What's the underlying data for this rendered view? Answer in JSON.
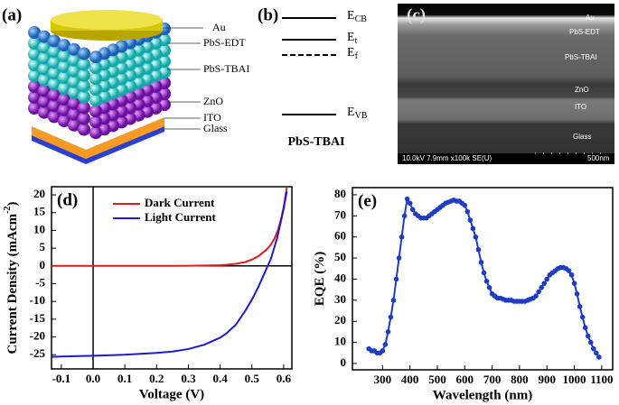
{
  "panel_a": {
    "label": "(a)",
    "layers": [
      "Au",
      "PbS-EDT",
      "PbS-TBAI",
      "ZnO",
      "ITO",
      "Glass"
    ]
  },
  "panel_b": {
    "label": "(b)",
    "levels": [
      {
        "symbol": "E",
        "subscript": "CB"
      },
      {
        "symbol": "E",
        "subscript": "t"
      },
      {
        "symbol": "E",
        "subscript": "f"
      },
      {
        "symbol": "E",
        "subscript": "VB"
      }
    ],
    "material": "PbS-TBAI"
  },
  "panel_c": {
    "label": "(c)",
    "layers": [
      "Au",
      "PbS-EDT",
      "PbS-TBAI",
      "ZnO",
      "ITO",
      "Glass"
    ],
    "info": "10.0kV 7.9mm x100k SE(U)",
    "scale": "500nm"
  },
  "chart_data": [
    {
      "type": "line",
      "panel_label": "(d)",
      "x_label": "Voltage (V)",
      "y_label": "Current Density (mAcm",
      "y_label_superscript": "-2",
      "y_label_suffix": ")",
      "x": [
        -0.13,
        -0.1,
        0,
        0.1,
        0.2,
        0.25,
        0.3,
        0.35,
        0.4,
        0.42,
        0.45,
        0.48,
        0.5,
        0.52,
        0.545,
        0.56,
        0.57,
        0.58,
        0.59,
        0.6,
        0.61
      ],
      "series": [
        {
          "name": "Dark Current",
          "color": "#e31a1c",
          "values": [
            0,
            0,
            0,
            0,
            0,
            0,
            0.05,
            0.1,
            0.2,
            0.3,
            0.6,
            1.1,
            1.8,
            2.7,
            4.5,
            6,
            7.5,
            9.5,
            12.5,
            16.5,
            22
          ]
        },
        {
          "name": "Light Current",
          "color": "#1a1adb",
          "values": [
            -25.6,
            -25.5,
            -25.3,
            -25,
            -24.5,
            -24.1,
            -23.4,
            -22.2,
            -20.2,
            -19,
            -16.5,
            -12.5,
            -9.5,
            -6,
            -1,
            2,
            5,
            8,
            12,
            16,
            21
          ]
        }
      ],
      "xlim": [
        -0.131,
        0.626
      ],
      "ylim": [
        -29,
        22.3
      ],
      "xticks": [
        -0.1,
        {
          "value": 0,
          "label": "0.0"
        },
        0.1,
        0.2,
        0.3,
        0.4,
        0.5,
        0.6
      ],
      "yticks": [
        -25,
        -20,
        -15,
        -10,
        -5,
        0,
        5,
        10,
        15,
        20
      ],
      "zero_lines": true,
      "legend": "upper left"
    },
    {
      "type": "line",
      "panel_label": "(e)",
      "x_label": "Wavelength (nm)",
      "y_label": "EQE (%)",
      "x": [
        250,
        260,
        270,
        280,
        290,
        300,
        310,
        320,
        330,
        340,
        350,
        360,
        370,
        380,
        390,
        400,
        410,
        420,
        430,
        440,
        450,
        460,
        470,
        480,
        490,
        500,
        510,
        520,
        530,
        540,
        550,
        560,
        570,
        580,
        590,
        600,
        610,
        620,
        630,
        640,
        650,
        660,
        670,
        680,
        690,
        700,
        710,
        720,
        730,
        740,
        750,
        760,
        770,
        780,
        790,
        800,
        810,
        820,
        830,
        840,
        850,
        860,
        870,
        880,
        890,
        900,
        910,
        920,
        930,
        940,
        950,
        960,
        970,
        980,
        990,
        1000,
        1010,
        1020,
        1030,
        1040,
        1050,
        1060,
        1070,
        1080,
        1090
      ],
      "series": [
        {
          "color": "#1f3cc4",
          "marker": "circle",
          "values": [
            7,
            6,
            6,
            5,
            5,
            6,
            9,
            15,
            22,
            30,
            40,
            50,
            60,
            70,
            78,
            76,
            73,
            71,
            70,
            69,
            69,
            69,
            70,
            71,
            72,
            73,
            74,
            75,
            76,
            76.5,
            77,
            77.5,
            77,
            77,
            76,
            75,
            72,
            68,
            64,
            60,
            54,
            48,
            43,
            39,
            36,
            33,
            32,
            31,
            31,
            30.5,
            30,
            30,
            30,
            29.5,
            29.5,
            29.5,
            29.5,
            29.5,
            30,
            30.5,
            31,
            32,
            34,
            36,
            38,
            40,
            42,
            43,
            44,
            45,
            45.5,
            45.5,
            45,
            44,
            42,
            38,
            33,
            27,
            22,
            17,
            13,
            10,
            7,
            5,
            3
          ]
        }
      ],
      "xlim": [
        190,
        1140
      ],
      "ylim": [
        -3,
        83.4
      ],
      "xticks": [
        300,
        400,
        500,
        600,
        700,
        800,
        900,
        1000,
        1100
      ],
      "yticks": [
        0,
        10,
        20,
        30,
        40,
        50,
        60,
        70,
        80
      ]
    }
  ]
}
